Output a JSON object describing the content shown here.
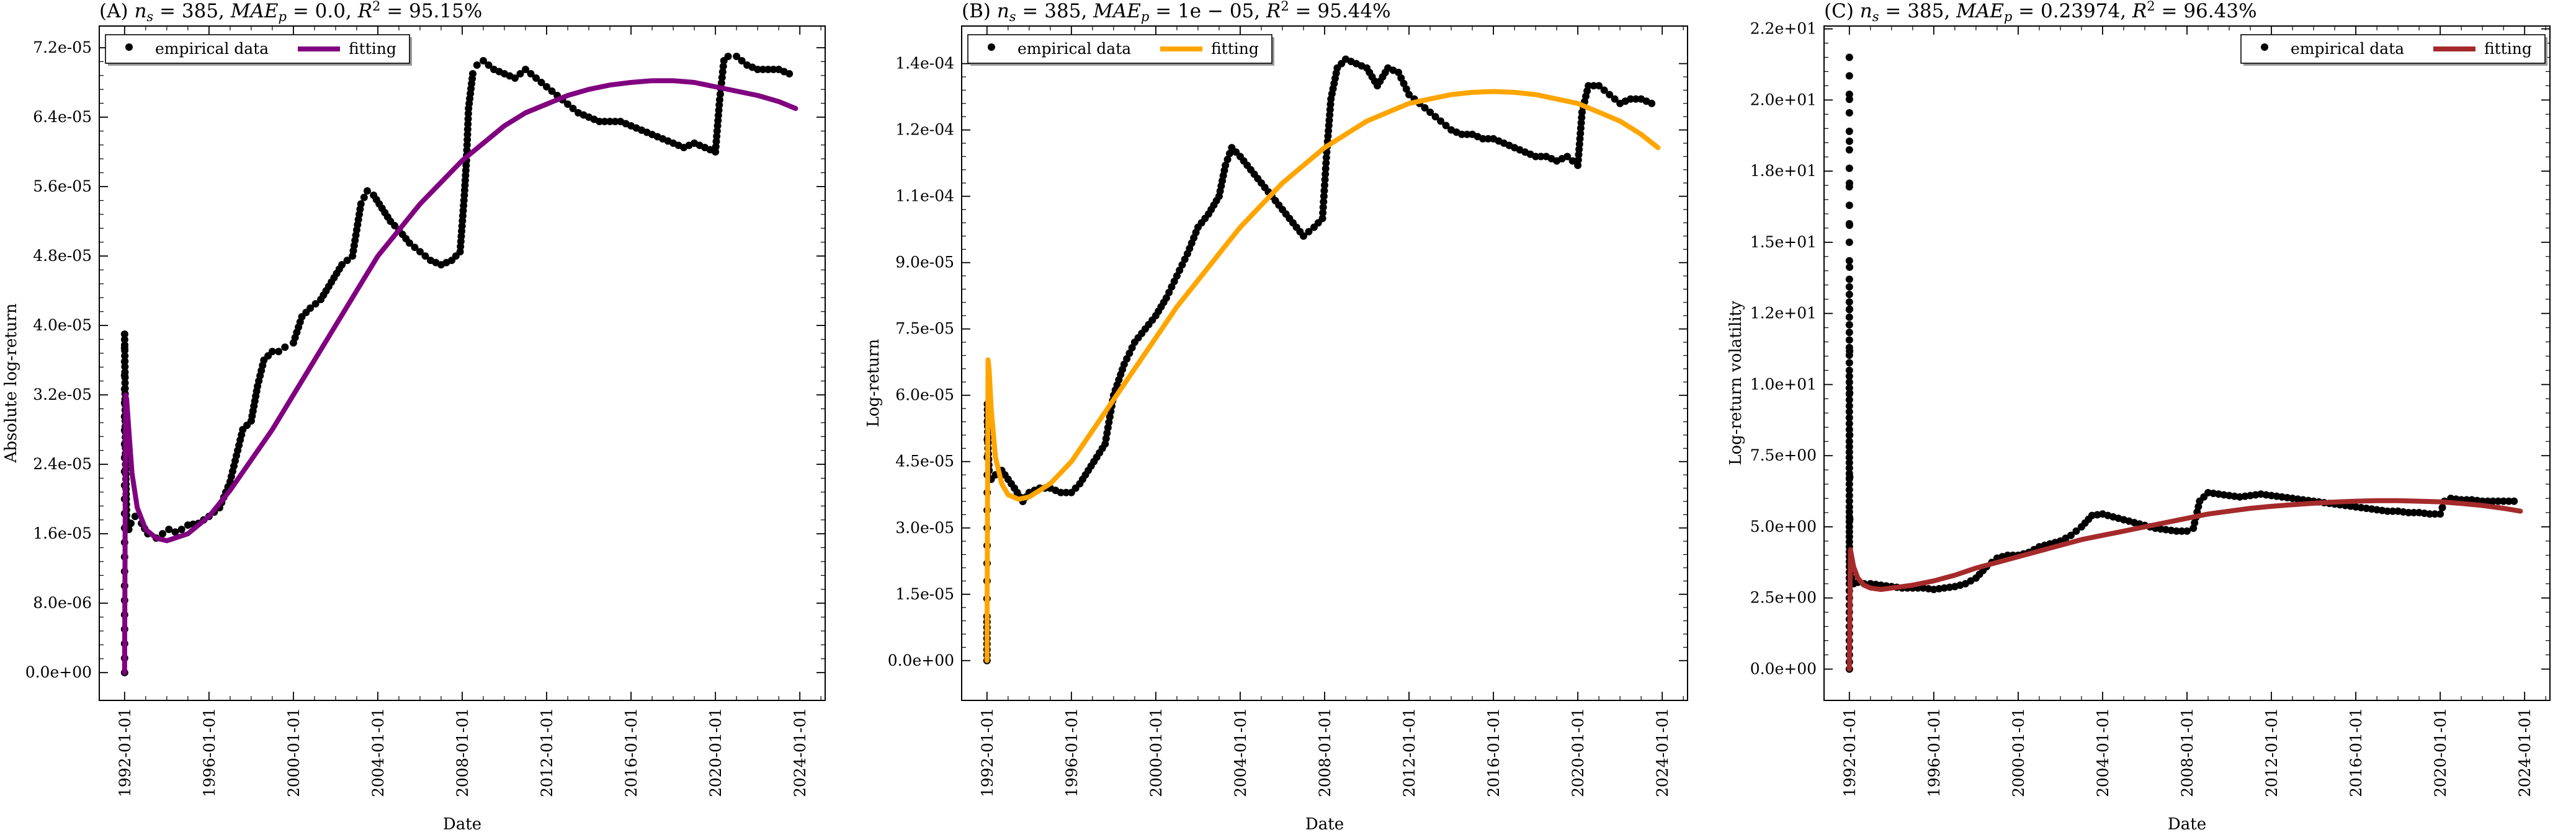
{
  "colors": {
    "empirical": "#000000",
    "fit_A": "#800080",
    "fit_B": "#FFA500",
    "fit_C": "#A52A2A"
  },
  "chart_data": [
    {
      "type": "scatter",
      "title": "(A) n_s = 385, MAE_p = 0.0, R^2 = 95.15%",
      "title_parts": {
        "prefix": "(A) ",
        "ns": "385",
        "mae": "0.0",
        "r2": "95.15%"
      },
      "xlabel": "Date",
      "ylabel": "Absolute log-return",
      "x_ticks": [
        "1992-01-01",
        "1996-01-01",
        "2000-01-01",
        "2004-01-01",
        "2008-01-01",
        "2012-01-01",
        "2016-01-01",
        "2020-01-01",
        "2024-01-01"
      ],
      "xlim": [
        1990.8,
        2025.2
      ],
      "ylim": [
        -3.2e-06,
        7.45e-05
      ],
      "y_ticks": [
        0,
        8e-06,
        1.6e-05,
        2.4e-05,
        3.2e-05,
        4e-05,
        4.8e-05,
        5.6e-05,
        6.4e-05,
        7.2e-05
      ],
      "y_tick_labels": [
        "0.0e+00",
        "8.0e-06",
        "1.6e-05",
        "2.4e-05",
        "3.2e-05",
        "4.0e-05",
        "4.8e-05",
        "5.6e-05",
        "6.4e-05",
        "7.2e-05"
      ],
      "legend": {
        "placement": "top-left",
        "entries": [
          "empirical data",
          "fitting"
        ]
      },
      "series": [
        {
          "name": "empirical data",
          "kind": "points",
          "color": "#000000",
          "x": [
            1992.0,
            1992.0,
            1992.0,
            1992.02,
            1992.03,
            1992.05,
            1992.08,
            1992.1,
            1992.15,
            1992.2,
            1992.3,
            1992.5,
            1992.8,
            1993.1,
            1993.5,
            1993.8,
            1994.1,
            1994.4,
            1994.7,
            1995.0,
            1995.5,
            1996.0,
            1996.5,
            1997.0,
            1997.3,
            1997.6,
            1998.0,
            1998.3,
            1998.6,
            1999.0,
            1999.3,
            1999.6,
            2000.0,
            2000.4,
            2000.8,
            2001.3,
            2001.8,
            2002.3,
            2002.8,
            2003.2,
            2003.5,
            2003.8,
            2004.2,
            2004.6,
            2005.0,
            2005.5,
            2006.0,
            2006.5,
            2007.0,
            2007.5,
            2007.9,
            2008.1,
            2008.2,
            2008.3,
            2008.5,
            2008.7,
            2009.0,
            2009.5,
            2010.0,
            2010.5,
            2011.0,
            2011.5,
            2012.0,
            2012.5,
            2013.0,
            2013.5,
            2014.0,
            2014.5,
            2015.0,
            2015.5,
            2016.0,
            2016.5,
            2017.0,
            2017.5,
            2018.0,
            2018.5,
            2019.0,
            2019.5,
            2020.0,
            2020.1,
            2020.2,
            2020.4,
            2020.6,
            2021.0,
            2021.5,
            2022.0,
            2022.5,
            2023.0,
            2023.5
          ],
          "y": [
            0,
            2e-05,
            3.9e-05,
            3.4e-05,
            2.9e-05,
            2.4e-05,
            2e-05,
            1.75e-05,
            1.7e-05,
            1.65e-05,
            1.72e-05,
            1.8e-05,
            1.72e-05,
            1.6e-05,
            1.55e-05,
            1.6e-05,
            1.65e-05,
            1.62e-05,
            1.65e-05,
            1.7e-05,
            1.72e-05,
            1.8e-05,
            1.9e-05,
            2.2e-05,
            2.5e-05,
            2.8e-05,
            2.9e-05,
            3.3e-05,
            3.6e-05,
            3.7e-05,
            3.7e-05,
            3.75e-05,
            3.8e-05,
            4.1e-05,
            4.2e-05,
            4.3e-05,
            4.5e-05,
            4.7e-05,
            4.8e-05,
            5.4e-05,
            5.55e-05,
            5.5e-05,
            5.35e-05,
            5.2e-05,
            5.1e-05,
            4.95e-05,
            4.85e-05,
            4.75e-05,
            4.7e-05,
            4.75e-05,
            4.85e-05,
            5.5e-05,
            5.9e-05,
            6.5e-05,
            6.9e-05,
            7e-05,
            7.05e-05,
            6.95e-05,
            6.9e-05,
            6.85e-05,
            6.95e-05,
            6.85e-05,
            6.75e-05,
            6.65e-05,
            6.55e-05,
            6.45e-05,
            6.4e-05,
            6.35e-05,
            6.35e-05,
            6.35e-05,
            6.3e-05,
            6.25e-05,
            6.2e-05,
            6.15e-05,
            6.1e-05,
            6.05e-05,
            6.1e-05,
            6.05e-05,
            6e-05,
            6.3e-05,
            6.6e-05,
            7.05e-05,
            7.1e-05,
            7.1e-05,
            7e-05,
            6.95e-05,
            6.95e-05,
            6.95e-05,
            6.9e-05
          ]
        },
        {
          "name": "fitting",
          "kind": "line",
          "color": "#800080",
          "x": [
            1992.0,
            1992.05,
            1992.1,
            1992.2,
            1992.35,
            1992.6,
            1993.0,
            1993.5,
            1994.0,
            1995.0,
            1996.0,
            1997.0,
            1998.0,
            1999.0,
            2000.0,
            2001.0,
            2002.0,
            2003.0,
            2004.0,
            2005.0,
            2006.0,
            2007.0,
            2008.0,
            2009.0,
            2010.0,
            2011.0,
            2012.0,
            2013.0,
            2014.0,
            2015.0,
            2016.0,
            2017.0,
            2018.0,
            2019.0,
            2020.0,
            2021.0,
            2022.0,
            2023.0,
            2023.8
          ],
          "y": [
            0,
            3.2e-05,
            3.15e-05,
            2.8e-05,
            2.3e-05,
            1.9e-05,
            1.65e-05,
            1.55e-05,
            1.52e-05,
            1.6e-05,
            1.8e-05,
            2.1e-05,
            2.45e-05,
            2.8e-05,
            3.2e-05,
            3.6e-05,
            4e-05,
            4.4e-05,
            4.8e-05,
            5.1e-05,
            5.4e-05,
            5.65e-05,
            5.9e-05,
            6.1e-05,
            6.3e-05,
            6.45e-05,
            6.55e-05,
            6.65e-05,
            6.72e-05,
            6.77e-05,
            6.8e-05,
            6.82e-05,
            6.82e-05,
            6.8e-05,
            6.75e-05,
            6.7e-05,
            6.65e-05,
            6.58e-05,
            6.5e-05
          ]
        }
      ]
    },
    {
      "type": "scatter",
      "title": "(B) n_s = 385, MAE_p = 1e − 05, R^2 = 95.44%",
      "title_parts": {
        "prefix": "(B) ",
        "ns": "385",
        "mae": "1e − 05",
        "r2": "95.44%"
      },
      "xlabel": "Date",
      "ylabel": "Log-return",
      "x_ticks": [
        "1992-01-01",
        "1996-01-01",
        "2000-01-01",
        "2004-01-01",
        "2008-01-01",
        "2012-01-01",
        "2016-01-01",
        "2020-01-01",
        "2024-01-01"
      ],
      "xlim": [
        1990.8,
        2025.2
      ],
      "ylim": [
        -9e-06,
        0.0001435
      ],
      "y_ticks": [
        0,
        1.5e-05,
        3e-05,
        4.5e-05,
        6e-05,
        7.5e-05,
        9e-05,
        0.000105,
        0.00012,
        0.000135
      ],
      "y_tick_labels": [
        "0.0e+00",
        "1.5e-05",
        "3.0e-05",
        "4.5e-05",
        "6.0e-05",
        "7.5e-05",
        "9.0e-05",
        "1.1e-04",
        "1.2e-04",
        "1.4e-04"
      ],
      "legend": {
        "placement": "top-left",
        "entries": [
          "empirical data",
          "fitting"
        ]
      },
      "series": [
        {
          "name": "empirical data",
          "kind": "points",
          "color": "#000000",
          "x": [
            1992.0,
            1992.0,
            1992.02,
            1992.05,
            1992.1,
            1992.2,
            1992.4,
            1992.7,
            1993.0,
            1993.3,
            1993.7,
            1994.0,
            1994.5,
            1995.0,
            1995.5,
            1996.0,
            1996.4,
            1996.8,
            1997.2,
            1997.6,
            1998.0,
            1998.5,
            1999.0,
            1999.5,
            2000.0,
            2000.5,
            2001.0,
            2001.5,
            2002.0,
            2002.5,
            2003.0,
            2003.3,
            2003.6,
            2004.0,
            2004.5,
            2005.0,
            2005.5,
            2006.0,
            2006.5,
            2007.0,
            2007.5,
            2007.9,
            2008.1,
            2008.3,
            2008.6,
            2009.0,
            2009.5,
            2010.0,
            2010.5,
            2011.0,
            2011.5,
            2012.0,
            2012.5,
            2013.0,
            2013.5,
            2014.0,
            2014.5,
            2015.0,
            2015.5,
            2016.0,
            2016.5,
            2017.0,
            2017.5,
            2018.0,
            2018.5,
            2019.0,
            2019.5,
            2020.0,
            2020.2,
            2020.5,
            2021.0,
            2021.5,
            2022.0,
            2022.5,
            2023.0,
            2023.5
          ],
          "y": [
            0,
            1e-05,
            5.8e-05,
            4.8e-05,
            4.3e-05,
            4.1e-05,
            4.2e-05,
            4.3e-05,
            4.1e-05,
            3.9e-05,
            3.6e-05,
            3.8e-05,
            3.9e-05,
            3.9e-05,
            3.8e-05,
            3.8e-05,
            4e-05,
            4.3e-05,
            4.6e-05,
            4.9e-05,
            6e-05,
            6.7e-05,
            7.2e-05,
            7.5e-05,
            7.8e-05,
            8.2e-05,
            8.7e-05,
            9.2e-05,
            9.8e-05,
            0.000101,
            0.000105,
            0.000112,
            0.000116,
            0.000114,
            0.000111,
            0.000108,
            0.000105,
            0.000102,
            9.9e-05,
            9.6e-05,
            9.8e-05,
            0.0001,
            0.000115,
            0.000127,
            0.000134,
            0.000136,
            0.000135,
            0.000134,
            0.00013,
            0.000134,
            0.000133,
            0.000128,
            0.000126,
            0.000124,
            0.000122,
            0.00012,
            0.000119,
            0.000119,
            0.000118,
            0.000118,
            0.000117,
            0.000116,
            0.000115,
            0.000114,
            0.000114,
            0.000113,
            0.000114,
            0.000112,
            0.000124,
            0.00013,
            0.00013,
            0.000128,
            0.000126,
            0.000127,
            0.000127,
            0.000126
          ]
        },
        {
          "name": "fitting",
          "kind": "line",
          "color": "#FFA500",
          "x": [
            1992.0,
            1992.05,
            1992.1,
            1992.2,
            1992.4,
            1992.7,
            1993.0,
            1993.5,
            1994.0,
            1995.0,
            1996.0,
            1997.0,
            1998.0,
            1999.0,
            2000.0,
            2001.0,
            2002.0,
            2003.0,
            2004.0,
            2005.0,
            2006.0,
            2007.0,
            2008.0,
            2009.0,
            2010.0,
            2011.0,
            2012.0,
            2013.0,
            2014.0,
            2015.0,
            2016.0,
            2017.0,
            2018.0,
            2019.0,
            2020.0,
            2021.0,
            2022.0,
            2023.0,
            2023.8
          ],
          "y": [
            0,
            6.8e-05,
            6.6e-05,
            5.7e-05,
            4.6e-05,
            4e-05,
            3.75e-05,
            3.65e-05,
            3.7e-05,
            4e-05,
            4.5e-05,
            5.2e-05,
            5.9e-05,
            6.6e-05,
            7.3e-05,
            8e-05,
            8.6e-05,
            9.2e-05,
            9.8e-05,
            0.000103,
            0.000108,
            0.000112,
            0.000116,
            0.000119,
            0.000122,
            0.000124,
            0.000126,
            0.000127,
            0.000128,
            0.0001285,
            0.0001287,
            0.0001285,
            0.000128,
            0.000127,
            0.000126,
            0.000124,
            0.000122,
            0.000119,
            0.000116
          ]
        }
      ]
    },
    {
      "type": "scatter",
      "title": "(C) n_s = 385, MAE_p = 0.23974, R^2 = 96.43%",
      "title_parts": {
        "prefix": "(C) ",
        "ns": "385",
        "mae": "0.23974",
        "r2": "96.43%"
      },
      "xlabel": "Date",
      "ylabel": "Log-return volatility",
      "x_ticks": [
        "1992-01-01",
        "1996-01-01",
        "2000-01-01",
        "2004-01-01",
        "2008-01-01",
        "2012-01-01",
        "2016-01-01",
        "2020-01-01",
        "2024-01-01"
      ],
      "xlim": [
        1990.8,
        2025.2
      ],
      "ylim": [
        -1.1,
        22.6
      ],
      "y_ticks": [
        0,
        2.5,
        5.0,
        7.5,
        10.0,
        12.5,
        15.0,
        17.5,
        20.0,
        22.5
      ],
      "y_tick_labels": [
        "0.0e+00",
        "2.5e+00",
        "5.0e+00",
        "7.5e+00",
        "1.0e+01",
        "1.2e+01",
        "1.5e+01",
        "1.8e+01",
        "2.0e+01",
        "2.2e+01"
      ],
      "legend": {
        "placement": "top-right",
        "entries": [
          "empirical data",
          "fitting"
        ]
      },
      "series": [
        {
          "name": "empirical data",
          "kind": "points",
          "color": "#000000",
          "x": [
            1992.0,
            1992.0,
            1992.0,
            1992.0,
            1992.0,
            1992.0,
            1992.0,
            1992.0,
            1992.0,
            1992.0,
            1992.0,
            1992.02,
            1992.05,
            1992.1,
            1992.2,
            1992.4,
            1992.7,
            1993.0,
            1993.5,
            1994.0,
            1994.5,
            1995.0,
            1995.5,
            1996.0,
            1996.5,
            1997.0,
            1997.5,
            1998.0,
            1998.5,
            1999.0,
            1999.5,
            2000.0,
            2000.5,
            2001.0,
            2001.5,
            2002.0,
            2002.5,
            2003.0,
            2003.5,
            2004.0,
            2004.5,
            2005.0,
            2005.5,
            2006.0,
            2006.5,
            2007.0,
            2007.5,
            2008.0,
            2008.3,
            2008.6,
            2009.0,
            2009.5,
            2010.0,
            2010.5,
            2011.0,
            2011.5,
            2012.0,
            2012.5,
            2013.0,
            2013.5,
            2014.0,
            2014.5,
            2015.0,
            2015.5,
            2016.0,
            2016.5,
            2017.0,
            2017.5,
            2018.0,
            2018.5,
            2019.0,
            2019.5,
            2020.0,
            2020.2,
            2020.5,
            2021.0,
            2021.5,
            2022.0,
            2022.5,
            2023.0,
            2023.5
          ],
          "y": [
            0,
            3.0,
            3.6,
            4.3,
            5.0,
            5.7,
            6.5,
            8.0,
            10.5,
            13.7,
            21.5,
            3.8,
            3.4,
            3.2,
            3.0,
            3.05,
            3.0,
            3.0,
            2.95,
            2.9,
            2.85,
            2.85,
            2.85,
            2.8,
            2.85,
            2.9,
            3.0,
            3.2,
            3.6,
            3.9,
            4.0,
            4.0,
            4.1,
            4.3,
            4.4,
            4.5,
            4.7,
            5.0,
            5.4,
            5.45,
            5.35,
            5.25,
            5.15,
            5.05,
            4.95,
            4.9,
            4.85,
            4.85,
            4.95,
            5.9,
            6.2,
            6.15,
            6.1,
            6.05,
            6.1,
            6.15,
            6.1,
            6.05,
            6.0,
            5.95,
            5.9,
            5.85,
            5.8,
            5.75,
            5.7,
            5.65,
            5.6,
            5.55,
            5.55,
            5.5,
            5.5,
            5.45,
            5.45,
            5.9,
            6.0,
            5.95,
            5.95,
            5.9,
            5.9,
            5.9,
            5.9
          ]
        },
        {
          "name": "fitting",
          "kind": "line",
          "color": "#A52A2A",
          "x": [
            1992.0,
            1992.05,
            1992.1,
            1992.2,
            1992.4,
            1992.7,
            1993.0,
            1993.5,
            1994.0,
            1995.0,
            1996.0,
            1997.0,
            1998.0,
            1999.0,
            2000.0,
            2001.0,
            2002.0,
            2003.0,
            2004.0,
            2005.0,
            2006.0,
            2007.0,
            2008.0,
            2009.0,
            2010.0,
            2011.0,
            2012.0,
            2013.0,
            2014.0,
            2015.0,
            2016.0,
            2017.0,
            2018.0,
            2019.0,
            2020.0,
            2021.0,
            2022.0,
            2023.0,
            2023.8
          ],
          "y": [
            0,
            4.2,
            4.0,
            3.6,
            3.2,
            2.95,
            2.85,
            2.8,
            2.85,
            2.95,
            3.1,
            3.3,
            3.55,
            3.75,
            3.95,
            4.15,
            4.35,
            4.55,
            4.7,
            4.85,
            5.0,
            5.15,
            5.3,
            5.45,
            5.55,
            5.65,
            5.72,
            5.78,
            5.83,
            5.87,
            5.9,
            5.92,
            5.92,
            5.9,
            5.88,
            5.82,
            5.75,
            5.65,
            5.55
          ]
        }
      ]
    }
  ]
}
